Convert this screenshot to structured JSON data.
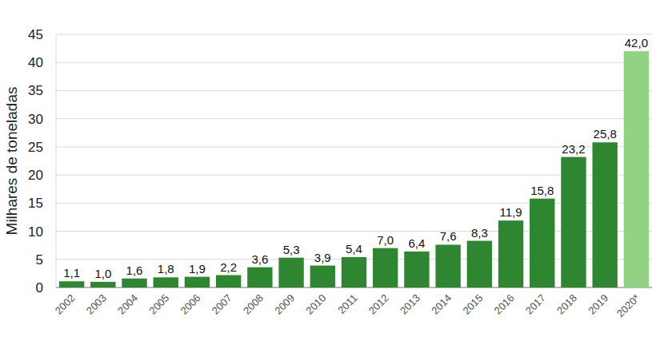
{
  "chart_data": {
    "type": "bar",
    "y_label": "Milhares de toneladas",
    "categories": [
      "2002",
      "2003",
      "2004",
      "2005",
      "2006",
      "2007",
      "2008",
      "2009",
      "2010",
      "2011",
      "2012",
      "2013",
      "2014",
      "2015",
      "2016",
      "2017",
      "2018",
      "2019",
      "2020*"
    ],
    "values": [
      1.1,
      1.0,
      1.6,
      1.8,
      1.9,
      2.2,
      3.6,
      5.3,
      3.9,
      5.4,
      7.0,
      6.4,
      7.6,
      8.3,
      11.9,
      15.8,
      23.2,
      25.8,
      42.0
    ],
    "value_labels": [
      "1,1",
      "1,0",
      "1,6",
      "1,8",
      "1,9",
      "2,2",
      "3,6",
      "5,3",
      "3,9",
      "5,4",
      "7,0",
      "6,4",
      "7,6",
      "8,3",
      "11,9",
      "15,8",
      "23,2",
      "25,8",
      "42,0"
    ],
    "colors": [
      "#2e8631",
      "#2e8631",
      "#2e8631",
      "#2e8631",
      "#2e8631",
      "#2e8631",
      "#2e8631",
      "#2e8631",
      "#2e8631",
      "#2e8631",
      "#2e8631",
      "#2e8631",
      "#2e8631",
      "#2e8631",
      "#2e8631",
      "#2e8631",
      "#2e8631",
      "#2e8631",
      "#92d283"
    ],
    "ylim": [
      0,
      45
    ],
    "yticks": [
      0,
      5,
      10,
      15,
      20,
      25,
      30,
      35,
      40,
      45
    ],
    "grid": true,
    "data_labels": true
  }
}
